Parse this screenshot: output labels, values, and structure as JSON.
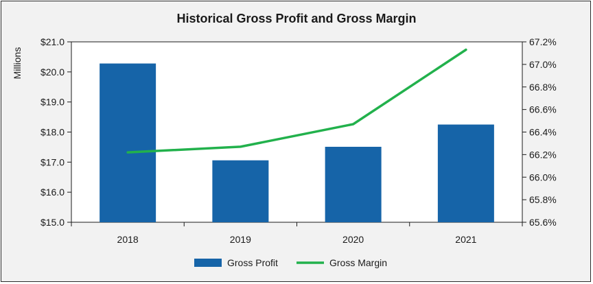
{
  "chart_data": {
    "type": "bar+line",
    "title": "Historical Gross Profit and Gross Margin",
    "categories": [
      "2018",
      "2019",
      "2020",
      "2021"
    ],
    "y_left": {
      "label": "Millions",
      "range": [
        15.0,
        21.0
      ],
      "ticks": [
        15.0,
        16.0,
        17.0,
        18.0,
        19.0,
        20.0,
        21.0
      ],
      "tick_labels": [
        "$15.0",
        "$16.0",
        "$17.0",
        "$18.0",
        "$19.0",
        "$20.0",
        "$21.0"
      ]
    },
    "y_right": {
      "range": [
        65.6,
        67.2
      ],
      "ticks": [
        65.6,
        65.8,
        66.0,
        66.2,
        66.4,
        66.6,
        66.8,
        67.0,
        67.2
      ],
      "tick_labels": [
        "65.6%",
        "65.8%",
        "66.0%",
        "66.2%",
        "66.4%",
        "66.6%",
        "66.8%",
        "67.0%",
        "67.2%"
      ]
    },
    "series": [
      {
        "name": "Gross Profit",
        "type": "bar",
        "axis": "left",
        "color": "#1664a8",
        "values": [
          20.28,
          17.06,
          17.51,
          18.25
        ]
      },
      {
        "name": "Gross Margin",
        "type": "line",
        "axis": "right",
        "color": "#22b14c",
        "values": [
          66.22,
          66.27,
          66.47,
          67.13
        ]
      }
    ],
    "legend_position": "bottom",
    "grid": false
  }
}
